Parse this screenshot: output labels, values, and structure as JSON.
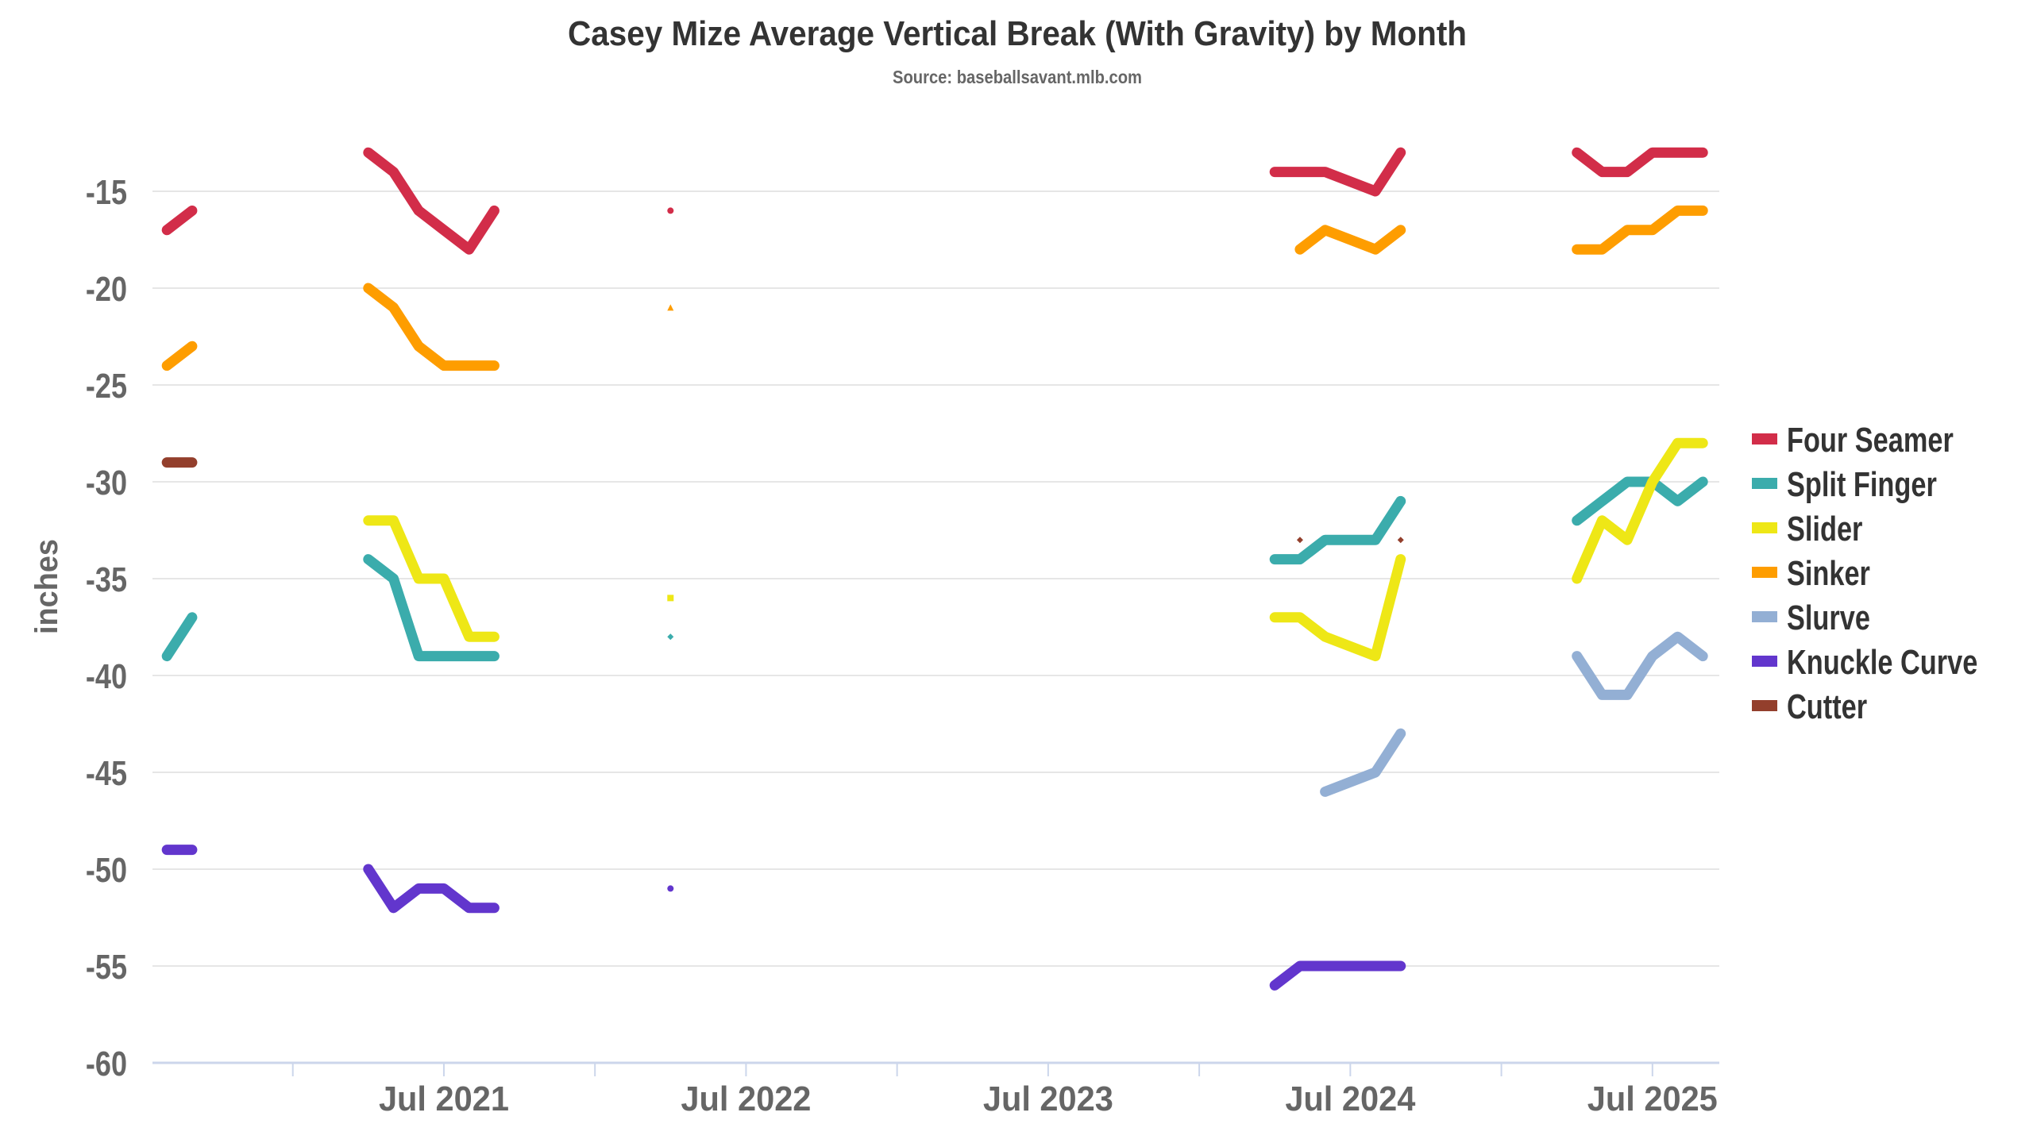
{
  "chart_data": {
    "type": "line",
    "title": "Casey Mize Average Vertical Break (With Gravity) by Month",
    "subtitle": "Source: baseballsavant.mlb.com",
    "xlabel": "",
    "ylabel": "inches",
    "ylim": [
      -60,
      -10
    ],
    "yticks": [
      -15,
      -20,
      -25,
      -30,
      -35,
      -40,
      -45,
      -50,
      -55,
      -60
    ],
    "ytick_labels": [
      "-15",
      "-20",
      "-25",
      "-30",
      "-35",
      "-40",
      "-45",
      "-50",
      "-55",
      "-60"
    ],
    "xlim": [
      "2020-07-14",
      "2025-09-21"
    ],
    "xticks": [
      "2021-01",
      "2021-07",
      "2022-01",
      "2022-07",
      "2023-01",
      "2023-07",
      "2024-01",
      "2024-07",
      "2025-01",
      "2025-07"
    ],
    "xtick_labels": [
      {
        "at": "2021-07",
        "label": "Jul 2021"
      },
      {
        "at": "2022-07",
        "label": "Jul 2022"
      },
      {
        "at": "2023-07",
        "label": "Jul 2023"
      },
      {
        "at": "2024-07",
        "label": "Jul 2024"
      },
      {
        "at": "2025-07",
        "label": "Jul 2025"
      }
    ],
    "grid": true,
    "legend_position": "right",
    "series": [
      {
        "name": "Four Seamer",
        "color": "#d22d49",
        "marker": "circle",
        "segments": [
          [
            [
              "2020-08",
              -17
            ],
            [
              "2020-09",
              -16
            ]
          ],
          [
            [
              "2021-04",
              -13
            ],
            [
              "2021-05",
              -14
            ],
            [
              "2021-06",
              -16
            ],
            [
              "2021-07",
              -17
            ],
            [
              "2021-08",
              -18
            ],
            [
              "2021-09",
              -16
            ]
          ],
          [
            [
              "2022-04",
              -16
            ]
          ],
          [
            [
              "2024-04",
              -14
            ],
            [
              "2024-05",
              -14
            ],
            [
              "2024-06",
              -14
            ],
            [
              "2024-08",
              -15
            ],
            [
              "2024-09",
              -13
            ]
          ],
          [
            [
              "2025-04",
              -13
            ],
            [
              "2025-05",
              -14
            ],
            [
              "2025-06",
              -14
            ],
            [
              "2025-07",
              -13
            ],
            [
              "2025-08",
              -13
            ],
            [
              "2025-09",
              -13
            ]
          ]
        ]
      },
      {
        "name": "Split Finger",
        "color": "#3bacac",
        "marker": "diamond",
        "segments": [
          [
            [
              "2020-08",
              -39
            ],
            [
              "2020-09",
              -37
            ]
          ],
          [
            [
              "2021-04",
              -34
            ],
            [
              "2021-05",
              -35
            ],
            [
              "2021-06",
              -39
            ],
            [
              "2021-07",
              -39
            ],
            [
              "2021-08",
              -39
            ],
            [
              "2021-09",
              -39
            ]
          ],
          [
            [
              "2022-04",
              -38
            ]
          ],
          [
            [
              "2024-04",
              -34
            ],
            [
              "2024-05",
              -34
            ],
            [
              "2024-06",
              -33
            ],
            [
              "2024-08",
              -33
            ],
            [
              "2024-09",
              -31
            ]
          ],
          [
            [
              "2025-04",
              -32
            ],
            [
              "2025-05",
              -31
            ],
            [
              "2025-06",
              -30
            ],
            [
              "2025-07",
              -30
            ],
            [
              "2025-08",
              -31
            ],
            [
              "2025-09",
              -30
            ]
          ]
        ]
      },
      {
        "name": "Slider",
        "color": "#eee716",
        "marker": "square",
        "segments": [
          [
            [
              "2021-04",
              -32
            ],
            [
              "2021-05",
              -32
            ],
            [
              "2021-06",
              -35
            ],
            [
              "2021-07",
              -35
            ],
            [
              "2021-08",
              -38
            ],
            [
              "2021-09",
              -38
            ]
          ],
          [
            [
              "2022-04",
              -36
            ]
          ],
          [
            [
              "2024-04",
              -37
            ],
            [
              "2024-05",
              -37
            ],
            [
              "2024-06",
              -38
            ],
            [
              "2024-08",
              -39
            ],
            [
              "2024-09",
              -34
            ]
          ],
          [
            [
              "2025-04",
              -35
            ],
            [
              "2025-05",
              -32
            ],
            [
              "2025-06",
              -33
            ],
            [
              "2025-07",
              -30
            ],
            [
              "2025-08",
              -28
            ],
            [
              "2025-09",
              -28
            ]
          ]
        ]
      },
      {
        "name": "Sinker",
        "color": "#fe9d00",
        "marker": "triangle",
        "segments": [
          [
            [
              "2020-08",
              -24
            ],
            [
              "2020-09",
              -23
            ]
          ],
          [
            [
              "2021-04",
              -20
            ],
            [
              "2021-05",
              -21
            ],
            [
              "2021-06",
              -23
            ],
            [
              "2021-07",
              -24
            ],
            [
              "2021-08",
              -24
            ],
            [
              "2021-09",
              -24
            ]
          ],
          [
            [
              "2022-04",
              -21
            ]
          ],
          [
            [
              "2024-05",
              -18
            ],
            [
              "2024-06",
              -17
            ],
            [
              "2024-08",
              -18
            ],
            [
              "2024-09",
              -17
            ]
          ],
          [
            [
              "2025-04",
              -18
            ],
            [
              "2025-05",
              -18
            ],
            [
              "2025-06",
              -17
            ],
            [
              "2025-07",
              -17
            ],
            [
              "2025-08",
              -16
            ],
            [
              "2025-09",
              -16
            ]
          ]
        ]
      },
      {
        "name": "Slurve",
        "color": "#93afd4",
        "marker": "circle",
        "segments": [
          [
            [
              "2024-06",
              -46
            ],
            [
              "2024-08",
              -45
            ],
            [
              "2024-09",
              -43
            ]
          ],
          [
            [
              "2025-04",
              -39
            ],
            [
              "2025-05",
              -41
            ],
            [
              "2025-06",
              -41
            ],
            [
              "2025-07",
              -39
            ],
            [
              "2025-08",
              -38
            ],
            [
              "2025-09",
              -39
            ]
          ]
        ]
      },
      {
        "name": "Knuckle Curve",
        "color": "#6236cd",
        "marker": "circle",
        "segments": [
          [
            [
              "2020-08",
              -49
            ],
            [
              "2020-09",
              -49
            ]
          ],
          [
            [
              "2021-04",
              -50
            ],
            [
              "2021-05",
              -52
            ],
            [
              "2021-06",
              -51
            ],
            [
              "2021-07",
              -51
            ],
            [
              "2021-08",
              -52
            ],
            [
              "2021-09",
              -52
            ]
          ],
          [
            [
              "2022-04",
              -51
            ]
          ],
          [
            [
              "2024-04",
              -56
            ],
            [
              "2024-05",
              -55
            ],
            [
              "2024-06",
              -55
            ],
            [
              "2024-08",
              -55
            ],
            [
              "2024-09",
              -55
            ]
          ]
        ]
      },
      {
        "name": "Cutter",
        "color": "#933f2c",
        "marker": "diamond",
        "segments": [
          [
            [
              "2020-08",
              -29
            ],
            [
              "2020-09",
              -29
            ]
          ],
          [
            [
              "2024-05",
              -33
            ]
          ],
          [
            [
              "2024-09",
              -33
            ]
          ]
        ]
      }
    ]
  }
}
